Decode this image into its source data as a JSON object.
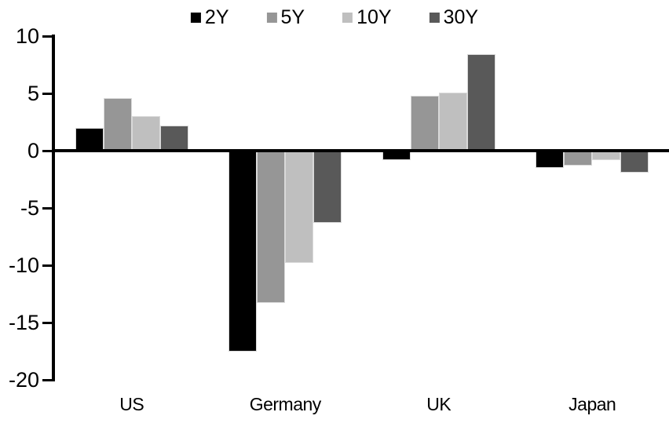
{
  "chart_data": {
    "type": "bar",
    "title": "",
    "categories": [
      "US",
      "Germany",
      "UK",
      "Japan"
    ],
    "series": [
      {
        "name": "2Y",
        "color": "#000000",
        "values": [
          2.0,
          -17.5,
          -0.8,
          -1.5
        ]
      },
      {
        "name": "5Y",
        "color": "#969696",
        "values": [
          4.6,
          -13.3,
          4.8,
          -1.3
        ]
      },
      {
        "name": "10Y",
        "color": "#bfbfbf",
        "values": [
          3.0,
          -9.8,
          5.1,
          -0.8
        ]
      },
      {
        "name": "30Y",
        "color": "#595959",
        "values": [
          2.2,
          -6.3,
          8.4,
          -1.9
        ]
      }
    ],
    "ylim": [
      -20,
      10
    ],
    "yticks": [
      10,
      5,
      0,
      -5,
      -10,
      -15,
      -20
    ],
    "xlabel": "",
    "ylabel": "",
    "grid": false,
    "legend_position": "top",
    "axis_color": "#000000",
    "background_color": "#ffffff"
  }
}
